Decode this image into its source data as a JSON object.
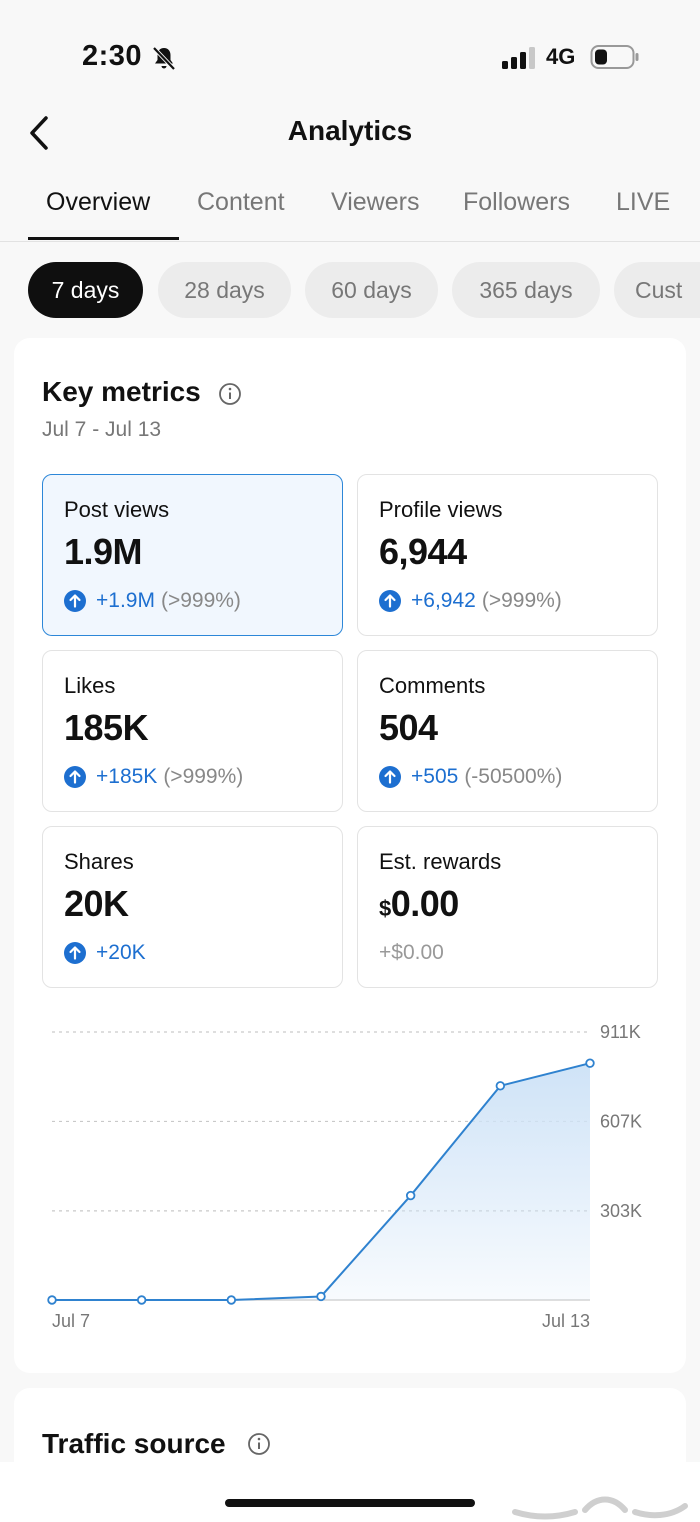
{
  "status_bar": {
    "time": "2:30",
    "network": "4G"
  },
  "header": {
    "title": "Analytics"
  },
  "tabs": [
    {
      "label": "Overview",
      "active": true
    },
    {
      "label": "Content",
      "active": false
    },
    {
      "label": "Viewers",
      "active": false
    },
    {
      "label": "Followers",
      "active": false
    },
    {
      "label": "LIVE",
      "active": false
    }
  ],
  "periods": [
    {
      "label": "7 days",
      "active": true
    },
    {
      "label": "28 days",
      "active": false
    },
    {
      "label": "60 days",
      "active": false
    },
    {
      "label": "365 days",
      "active": false
    },
    {
      "label": "Cust",
      "active": false
    }
  ],
  "key_metrics": {
    "title": "Key metrics",
    "date_range": "Jul 7 - Jul 13",
    "metrics": [
      {
        "label": "Post views",
        "value": "1.9M",
        "change": "+1.9M",
        "pct": "(>999%)",
        "selected": true
      },
      {
        "label": "Profile views",
        "value": "6,944",
        "change": "+6,942",
        "pct": "(>999%)"
      },
      {
        "label": "Likes",
        "value": "185K",
        "change": "+185K",
        "pct": "(>999%)"
      },
      {
        "label": "Comments",
        "value": "504",
        "change": "+505",
        "pct": "(-50500%)"
      },
      {
        "label": "Shares",
        "value": "20K",
        "change": "+20K",
        "pct": ""
      },
      {
        "label": "Est. rewards",
        "currency": "$",
        "value": "0.00",
        "change": "+$0.00",
        "pct": ""
      }
    ]
  },
  "chart_data": {
    "type": "area",
    "x": [
      "Jul 7",
      "Jul 8",
      "Jul 9",
      "Jul 10",
      "Jul 11",
      "Jul 12",
      "Jul 13"
    ],
    "values": [
      0,
      0,
      0,
      12000,
      355000,
      728000,
      805000
    ],
    "x_tick_labels": [
      "Jul 7",
      "Jul 13"
    ],
    "y_ticks": [
      303000,
      607000,
      911000
    ],
    "y_tick_labels": [
      "303K",
      "607K",
      "911K"
    ],
    "ylim": [
      0,
      911000
    ],
    "grid": true,
    "colors": {
      "line": "#2f82cf",
      "fill": "#cfe3f7"
    }
  },
  "traffic": {
    "title": "Traffic source"
  },
  "colors": {
    "accent": "#1d6fd0",
    "selected_border": "#2d87d8"
  }
}
